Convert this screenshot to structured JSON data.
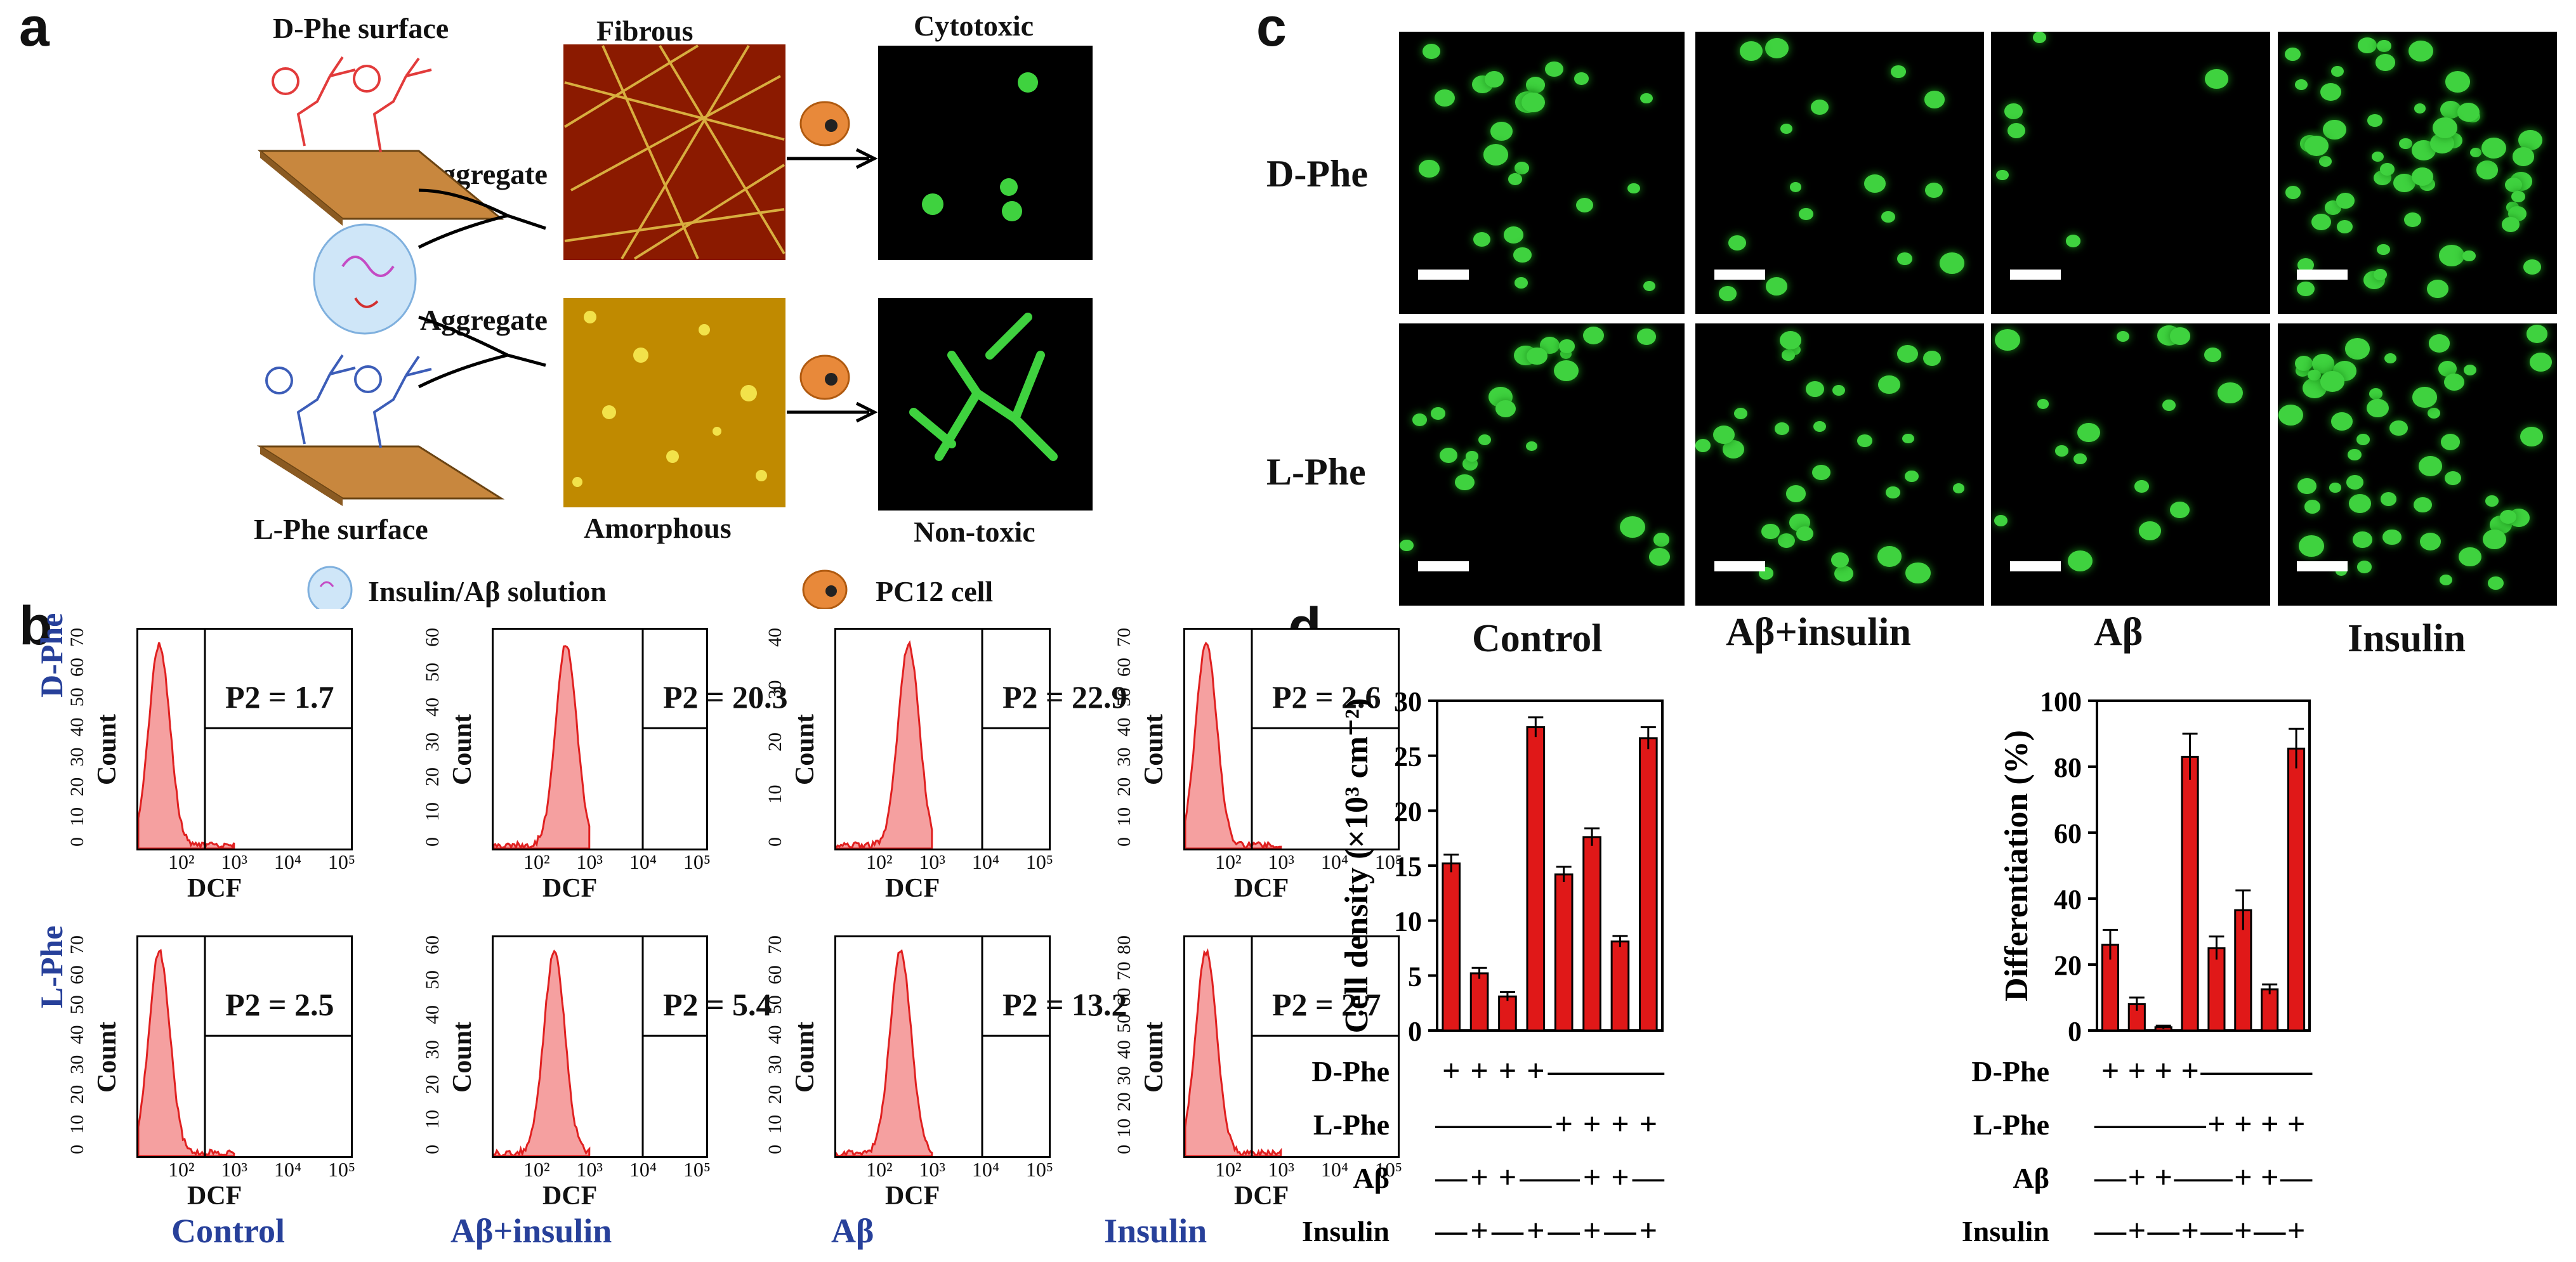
{
  "panels": {
    "a": "a",
    "b": "b",
    "c": "c",
    "d": "d"
  },
  "panel_a": {
    "d_phe_surface": "D-Phe surface",
    "l_phe_surface": "L-Phe surface",
    "aggregate": "Aggregate",
    "fibrous": "Fibrous",
    "amorphous": "Amorphous",
    "cytotoxic": "Cytotoxic",
    "non_toxic": "Non-toxic",
    "legend_solution": "Insulin/Aβ  solution",
    "legend_cell": "PC12 cell",
    "colors": {
      "d_phe": "#e23b3b",
      "l_phe": "#3c5db8",
      "surface": "#c8873e",
      "fibrous_bg": "#8b1a00",
      "amorphous_bg": "#c6a000",
      "cell": "#e8893a"
    }
  },
  "panel_b": {
    "row_labels": [
      "D-Phe",
      "L-Phe"
    ],
    "col_labels": [
      "Control",
      "Aβ+insulin",
      "Aβ",
      "Insulin"
    ],
    "ylabel": "Count",
    "xlabel": "DCF",
    "x_ticks": [
      "10²",
      "10³",
      "10⁴",
      "10⁵"
    ],
    "y_ticks": [
      [
        "0",
        "10",
        "20",
        "30",
        "40",
        "50",
        "60",
        "70"
      ],
      [
        "0",
        "10",
        "20",
        "30",
        "40",
        "50",
        "60"
      ],
      [
        "0",
        "10",
        "20",
        "30",
        "40"
      ],
      [
        "0",
        "10",
        "20",
        "30",
        "40",
        "50",
        "60",
        "70"
      ],
      [
        "0",
        "10",
        "20",
        "30",
        "40",
        "50",
        "60",
        "70"
      ],
      [
        "0",
        "10",
        "20",
        "30",
        "40",
        "50",
        "60"
      ],
      [
        "0",
        "10",
        "20",
        "30",
        "40",
        "50",
        "60",
        "70"
      ],
      [
        "0",
        "10",
        "20",
        "30",
        "40",
        "50",
        "60",
        "70",
        "80"
      ]
    ],
    "p2_values": [
      "P2 = 1.7",
      "P2 = 20.3",
      "P2 = 22.9",
      "P2 = 2.6",
      "P2 = 2.5",
      "P2 = 5.4",
      "P2 = 13.2",
      "P2 = 2.7"
    ],
    "colors": {
      "hist": "#e02020",
      "label_blue": "#27409a"
    }
  },
  "panel_c": {
    "row_labels": [
      "D-Phe",
      "L-Phe"
    ],
    "col_labels": [
      "Control",
      "Aβ+insulin",
      "Aβ",
      "Insulin"
    ]
  },
  "panel_d": {
    "condition_rows": [
      {
        "label": "D-Phe",
        "signs": [
          "+",
          "+",
          "+",
          "+",
          "—",
          "—",
          "—",
          "—"
        ]
      },
      {
        "label": "L-Phe",
        "signs": [
          "—",
          "—",
          "—",
          "—",
          "+",
          "+",
          "+",
          "+"
        ]
      },
      {
        "label": "Aβ",
        "signs": [
          "—",
          "+",
          "+",
          "—",
          "—",
          "+",
          "+",
          "—"
        ]
      },
      {
        "label": "Insulin",
        "signs": [
          "—",
          "+",
          "—",
          "+",
          "—",
          "+",
          "—",
          "+"
        ]
      }
    ]
  },
  "chart_data": [
    {
      "type": "bar",
      "ylabel": "Cell density (×10³ cm⁻²)",
      "ylim": [
        0,
        30
      ],
      "y_ticks": [
        "0",
        "5",
        "10",
        "15",
        "20",
        "25",
        "30"
      ],
      "values": [
        15.2,
        5.2,
        3.1,
        27.6,
        14.2,
        17.6,
        8.1,
        26.6
      ],
      "errors": [
        0.8,
        0.5,
        0.4,
        0.9,
        0.7,
        0.8,
        0.5,
        1.0
      ],
      "color": "#e01818"
    },
    {
      "type": "bar",
      "ylabel": "Differentiation (%)",
      "ylim": [
        0,
        100
      ],
      "y_ticks": [
        "0",
        "20",
        "40",
        "60",
        "80",
        "100"
      ],
      "values": [
        26,
        8,
        1,
        83,
        25,
        36.5,
        12.5,
        85.5
      ],
      "errors": [
        4.5,
        2,
        0.5,
        7,
        3.5,
        6,
        1.5,
        6
      ],
      "color": "#e01818"
    }
  ]
}
